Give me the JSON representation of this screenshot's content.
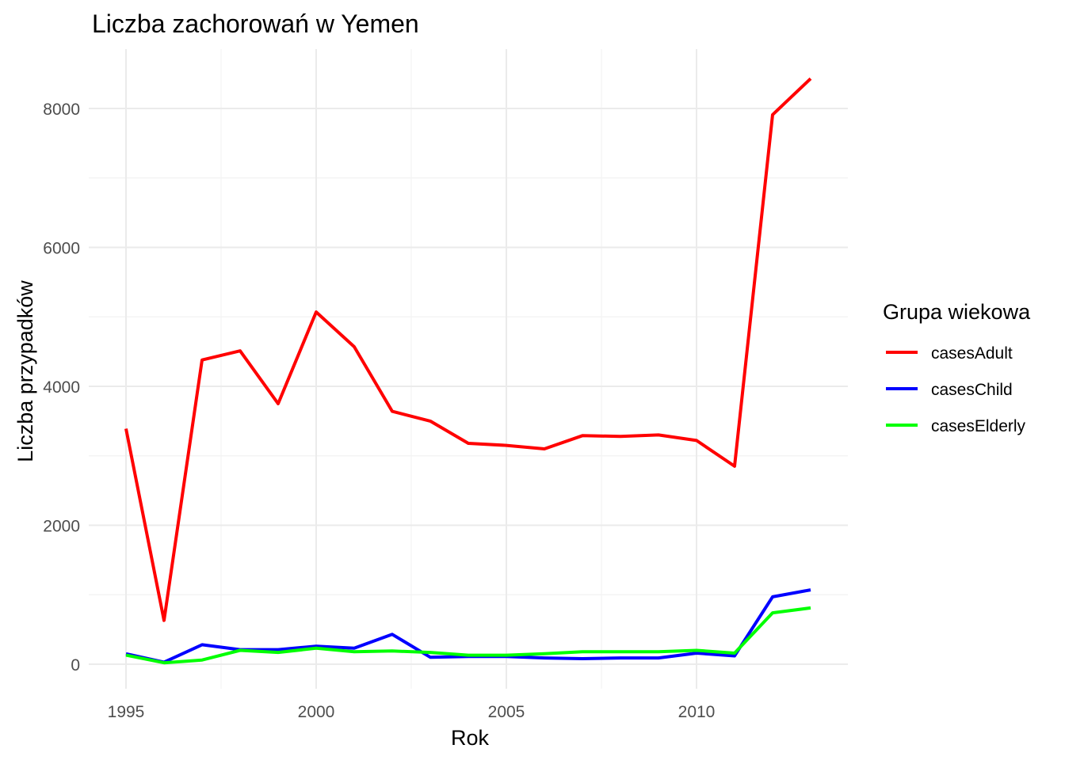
{
  "chart_data": {
    "type": "line",
    "title": "Liczba zachorowań w Yemen",
    "xlabel": "Rok",
    "ylabel": "Liczba przypadków",
    "x": [
      1995,
      1996,
      1997,
      1998,
      1999,
      2000,
      2001,
      2002,
      2003,
      2004,
      2005,
      2006,
      2007,
      2008,
      2009,
      2010,
      2011,
      2012,
      2013
    ],
    "xlim": [
      1995,
      2013
    ],
    "ylim": [
      0,
      8800
    ],
    "x_ticks": [
      1995,
      2000,
      2005,
      2010
    ],
    "x_tick_labels": [
      "1995",
      "2000",
      "2005",
      "2010"
    ],
    "y_ticks": [
      0,
      2000,
      4000,
      6000,
      8000
    ],
    "y_tick_labels": [
      "0",
      "2000",
      "4000",
      "6000",
      "8000"
    ],
    "grid": true,
    "legend": {
      "title": "Grupa wiekowa",
      "position": "right"
    },
    "series": [
      {
        "name": "casesAdult",
        "color": "#ff0000",
        "values": [
          3390,
          630,
          4380,
          4510,
          3750,
          5070,
          4570,
          3640,
          3500,
          3180,
          3150,
          3100,
          3290,
          3280,
          3300,
          3220,
          2850,
          7910,
          8430
        ]
      },
      {
        "name": "casesChild",
        "color": "#0000ff",
        "values": [
          150,
          30,
          280,
          210,
          210,
          260,
          230,
          430,
          100,
          110,
          110,
          90,
          80,
          90,
          90,
          160,
          120,
          970,
          1070
        ]
      },
      {
        "name": "casesElderly",
        "color": "#00ff00",
        "values": [
          130,
          20,
          60,
          200,
          170,
          230,
          180,
          190,
          170,
          130,
          130,
          150,
          180,
          180,
          180,
          200,
          160,
          740,
          810
        ]
      }
    ]
  }
}
